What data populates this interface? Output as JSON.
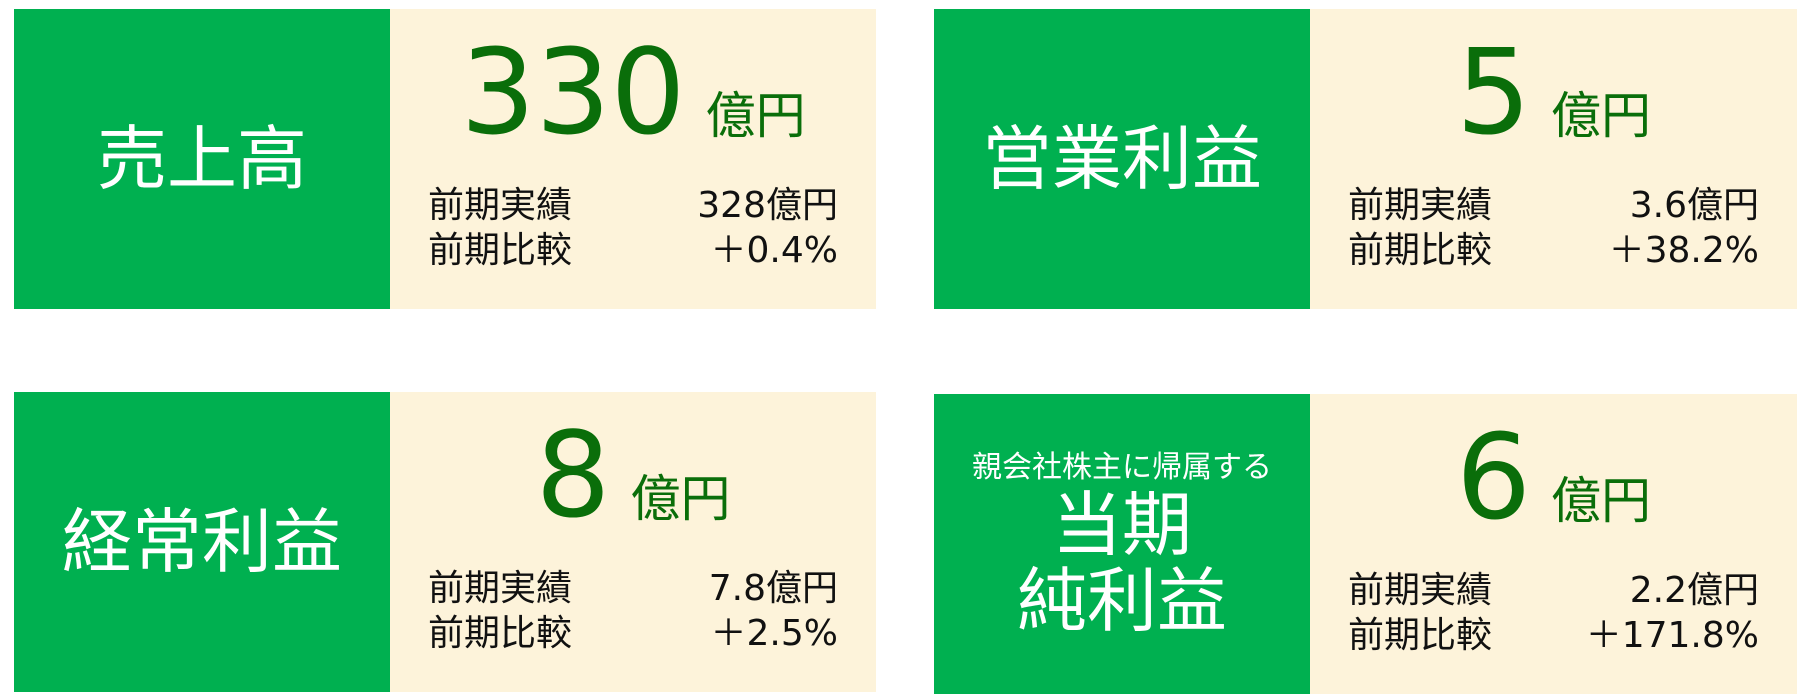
{
  "cards": [
    {
      "title_lines": [
        "売上高"
      ],
      "value": "330",
      "unit": "億円",
      "rows": [
        [
          "前期実績",
          "328億円"
        ],
        [
          "前期比較",
          "＋0.4%"
        ]
      ]
    },
    {
      "title_lines": [
        "営業利益"
      ],
      "value": "5",
      "unit": "億円",
      "rows": [
        [
          "前期実績",
          "3.6億円"
        ],
        [
          "前期比較",
          "＋38.2%"
        ]
      ]
    },
    {
      "title_lines": [
        "経常利益"
      ],
      "value": "8",
      "unit": "億円",
      "rows": [
        [
          "前期実績",
          "7.8億円"
        ],
        [
          "前期比較",
          "＋2.5%"
        ]
      ]
    },
    {
      "subtitle": "親会社株主に帰属する",
      "title_lines": [
        "当期",
        "純利益"
      ],
      "value": "6",
      "unit": "億円",
      "rows": [
        [
          "前期実績",
          "2.2億円"
        ],
        [
          "前期比較",
          "＋171.8%"
        ]
      ]
    }
  ]
}
